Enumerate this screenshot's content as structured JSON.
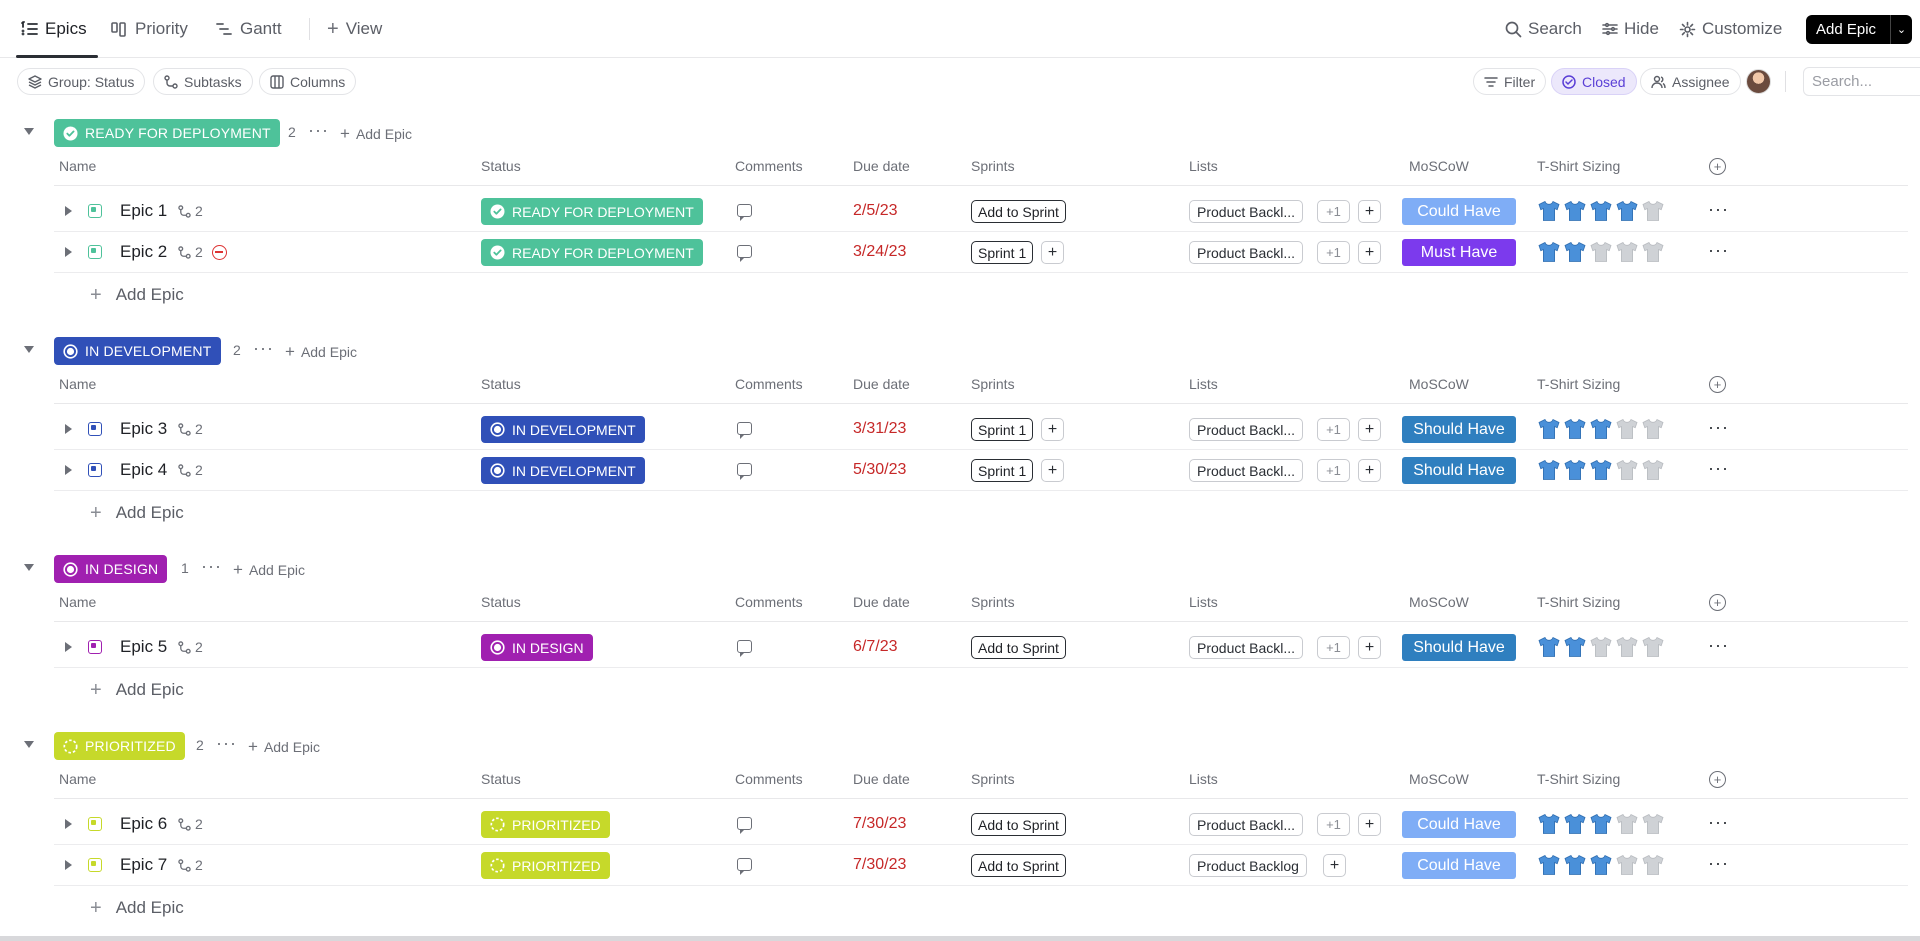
{
  "tabs": [
    {
      "label": "Epics",
      "icon": "list-icon",
      "active": true
    },
    {
      "label": "Priority",
      "icon": "board-icon",
      "active": false
    },
    {
      "label": "Gantt",
      "icon": "gantt-icon",
      "active": false
    }
  ],
  "view_label": "View",
  "top_actions": {
    "search": "Search",
    "hide": "Hide",
    "customize": "Customize",
    "add_epic": "Add Epic"
  },
  "toolbar": {
    "group": "Group: Status",
    "subtasks": "Subtasks",
    "columns": "Columns",
    "filter": "Filter",
    "closed": "Closed",
    "assignee": "Assignee",
    "search_placeholder": "Search..."
  },
  "columns": {
    "name": "Name",
    "status": "Status",
    "comments": "Comments",
    "due": "Due date",
    "sprints": "Sprints",
    "lists": "Lists",
    "moscow": "MoSCoW",
    "tshirt": "T-Shirt Sizing"
  },
  "add_epic_label": "Add Epic",
  "groups": [
    {
      "label": "READY FOR DEPLOYMENT",
      "count": "2",
      "color": "#4ec29a",
      "icon": "check-circle-icon",
      "rows": [
        {
          "name": "Epic 1",
          "subtasks": "2",
          "blocked": false,
          "due": "2/5/23",
          "sprint": "Add to Sprint",
          "list": "Product Backl...",
          "list_more": "+1",
          "moscow": "Could Have",
          "moscow_color": "#7fadf6",
          "tshirt": 4
        },
        {
          "name": "Epic 2",
          "subtasks": "2",
          "blocked": true,
          "due": "3/24/23",
          "sprint": "Sprint 1",
          "list": "Product Backl...",
          "list_more": "+1",
          "moscow": "Must Have",
          "moscow_color": "#7c3aed",
          "tshirt": 2
        }
      ]
    },
    {
      "label": "IN DEVELOPMENT",
      "count": "2",
      "color": "#3050b8",
      "icon": "target-icon",
      "rows": [
        {
          "name": "Epic 3",
          "subtasks": "2",
          "blocked": false,
          "due": "3/31/23",
          "sprint": "Sprint 1",
          "list": "Product Backl...",
          "list_more": "+1",
          "moscow": "Should Have",
          "moscow_color": "#2f7fbf",
          "tshirt": 3
        },
        {
          "name": "Epic 4",
          "subtasks": "2",
          "blocked": false,
          "due": "5/30/23",
          "sprint": "Sprint 1",
          "list": "Product Backl...",
          "list_more": "+1",
          "moscow": "Should Have",
          "moscow_color": "#2f7fbf",
          "tshirt": 3
        }
      ]
    },
    {
      "label": "IN DESIGN",
      "count": "1",
      "color": "#a020b0",
      "icon": "target-icon",
      "rows": [
        {
          "name": "Epic 5",
          "subtasks": "2",
          "blocked": false,
          "due": "6/7/23",
          "sprint": "Add to Sprint",
          "list": "Product Backl...",
          "list_more": "+1",
          "moscow": "Should Have",
          "moscow_color": "#2f7fbf",
          "tshirt": 2
        }
      ]
    },
    {
      "label": "PRIORITIZED",
      "count": "2",
      "color": "#c6d92a",
      "icon": "dashed-circle-icon",
      "rows": [
        {
          "name": "Epic 6",
          "subtasks": "2",
          "blocked": false,
          "due": "7/30/23",
          "sprint": "Add to Sprint",
          "list": "Product Backl...",
          "list_more": "+1",
          "moscow": "Could Have",
          "moscow_color": "#7fadf6",
          "tshirt": 3
        },
        {
          "name": "Epic 7",
          "subtasks": "2",
          "blocked": false,
          "due": "7/30/23",
          "sprint": "Add to Sprint",
          "list": "Product Backlog",
          "list_more": "",
          "moscow": "Could Have",
          "moscow_color": "#7fadf6",
          "tshirt": 3
        }
      ]
    }
  ],
  "tshirt_colors": {
    "filled": "#4a90d9",
    "empty": "#cfd2d6"
  }
}
